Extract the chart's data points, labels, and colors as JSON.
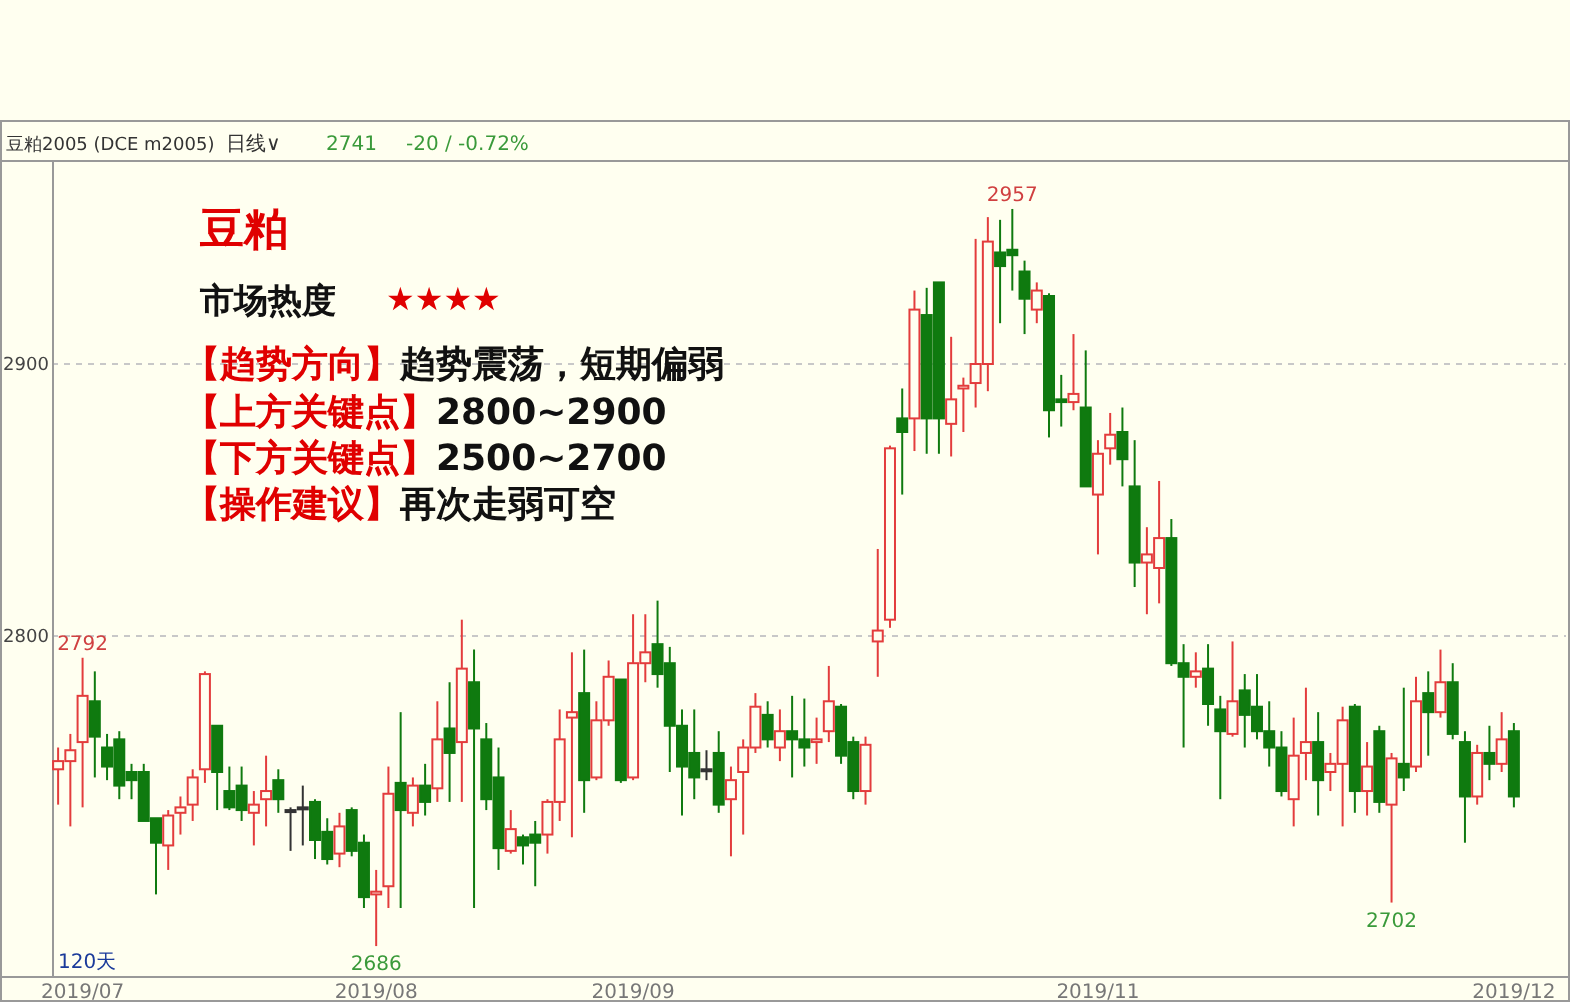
{
  "chart_data": {
    "type": "candlestick",
    "title": "豆粕",
    "subtitle": "市场热度",
    "categories": [
      null,
      null,
      "2019/07",
      null,
      null,
      null,
      null,
      null,
      null,
      null,
      null,
      null,
      null,
      null,
      null,
      null,
      null,
      null,
      null,
      null,
      null,
      null,
      null,
      null,
      null,
      null,
      "2019/08",
      null,
      null,
      null,
      null,
      null,
      null,
      null,
      null,
      null,
      null,
      null,
      null,
      null,
      null,
      null,
      null,
      null,
      null,
      null,
      null,
      "2019/09",
      null,
      null,
      null,
      null,
      null,
      null,
      null,
      null,
      null,
      null,
      null,
      null,
      null,
      null,
      null,
      null,
      null,
      null,
      null,
      null,
      null,
      null,
      null,
      null,
      null,
      null,
      null,
      null,
      null,
      null,
      null,
      null,
      null,
      null,
      null,
      null,
      null,
      "2019/11",
      null,
      null,
      null,
      null,
      null,
      null,
      null,
      null,
      null,
      null,
      null,
      null,
      null,
      null,
      null,
      null,
      null,
      null,
      null,
      null,
      null,
      null,
      null,
      null,
      null,
      null,
      null,
      null,
      null,
      null,
      null,
      null,
      null,
      "2019/12"
    ],
    "ohlc": [
      [
        2751,
        2759,
        2738,
        2754
      ],
      [
        2754,
        2764,
        2730,
        2758
      ],
      [
        2761,
        2792,
        2737,
        2778
      ],
      [
        2776,
        2787,
        2748,
        2763
      ],
      [
        2759,
        2764,
        2747,
        2752
      ],
      [
        2762,
        2765,
        2740,
        2745
      ],
      [
        2750,
        2753,
        2740,
        2747
      ],
      [
        2750,
        2753,
        2732,
        2732
      ],
      [
        2733,
        2733,
        2705,
        2724
      ],
      [
        2723,
        2736,
        2714,
        2734
      ],
      [
        2735,
        2741,
        2727,
        2737
      ],
      [
        2738,
        2751,
        2732,
        2748
      ],
      [
        2751,
        2787,
        2746,
        2786
      ],
      [
        2767,
        2767,
        2736,
        2750
      ],
      [
        2743,
        2752,
        2736,
        2737
      ],
      [
        2745,
        2752,
        2732,
        2736
      ],
      [
        2735,
        2743,
        2723,
        2738
      ],
      [
        2740,
        2756,
        2730,
        2743
      ],
      [
        2747,
        2751,
        2735,
        2740
      ],
      [
        2736,
        2737,
        2721,
        2736
      ],
      [
        2737,
        2745,
        2723,
        2737
      ],
      [
        2739,
        2740,
        2718,
        2725
      ],
      [
        2728,
        2733,
        2716,
        2718
      ],
      [
        2720,
        2735,
        2715,
        2730
      ],
      [
        2736,
        2737,
        2719,
        2721
      ],
      [
        2724,
        2727,
        2700,
        2704
      ],
      [
        2705,
        2714,
        2686,
        2706
      ],
      [
        2708,
        2752,
        2700,
        2742
      ],
      [
        2746,
        2772,
        2700,
        2736
      ],
      [
        2735,
        2748,
        2730,
        2745
      ],
      [
        2745,
        2753,
        2734,
        2739
      ],
      [
        2744,
        2776,
        2739,
        2762
      ],
      [
        2766,
        2783,
        2739,
        2757
      ],
      [
        2761,
        2806,
        2739,
        2788
      ],
      [
        2783,
        2795,
        2700,
        2766
      ],
      [
        2762,
        2768,
        2736,
        2740
      ],
      [
        2748,
        2759,
        2714,
        2722
      ],
      [
        2721,
        2736,
        2720,
        2729
      ],
      [
        2726,
        2727,
        2716,
        2723
      ],
      [
        2727,
        2732,
        2708,
        2724
      ],
      [
        2727,
        2740,
        2720,
        2739
      ],
      [
        2739,
        2773,
        2732,
        2762
      ],
      [
        2770,
        2794,
        2726,
        2772
      ],
      [
        2779,
        2795,
        2735,
        2747
      ],
      [
        2748,
        2776,
        2747,
        2769
      ],
      [
        2769,
        2791,
        2767,
        2785
      ],
      [
        2784,
        2784,
        2746,
        2747
      ],
      [
        2748,
        2808,
        2747,
        2790
      ],
      [
        2790,
        2808,
        2783,
        2794
      ],
      [
        2797,
        2813,
        2781,
        2786
      ],
      [
        2790,
        2796,
        2750,
        2767
      ],
      [
        2767,
        2773,
        2734,
        2752
      ],
      [
        2757,
        2773,
        2740,
        2748
      ],
      [
        2751,
        2758,
        2747,
        2751
      ],
      [
        2757,
        2765,
        2735,
        2738
      ],
      [
        2740,
        2752,
        2719,
        2747
      ],
      [
        2750,
        2762,
        2727,
        2759
      ],
      [
        2759,
        2779,
        2757,
        2774
      ],
      [
        2771,
        2776,
        2759,
        2762
      ],
      [
        2759,
        2773,
        2754,
        2765
      ],
      [
        2765,
        2778,
        2748,
        2762
      ],
      [
        2762,
        2777,
        2752,
        2759
      ],
      [
        2761,
        2770,
        2753,
        2762
      ],
      [
        2765,
        2789,
        2761,
        2776
      ],
      [
        2774,
        2775,
        2753,
        2756
      ],
      [
        2761,
        2763,
        2740,
        2743
      ],
      [
        2743,
        2763,
        2738,
        2760
      ],
      [
        2798,
        2832,
        2785,
        2802
      ],
      [
        2806,
        2870,
        2803,
        2869
      ],
      [
        2880,
        2891,
        2852,
        2875
      ],
      [
        2880,
        2927,
        2868,
        2920
      ],
      [
        2918,
        2928,
        2867,
        2880
      ],
      [
        2930,
        2930,
        2867,
        2880
      ],
      [
        2878,
        2910,
        2866,
        2887
      ],
      [
        2891,
        2895,
        2875,
        2892
      ],
      [
        2893,
        2946,
        2884,
        2900
      ],
      [
        2900,
        2954,
        2890,
        2945
      ],
      [
        2941,
        2953,
        2915,
        2936
      ],
      [
        2942,
        2957,
        2927,
        2940
      ],
      [
        2934,
        2938,
        2911,
        2924
      ],
      [
        2920,
        2930,
        2915,
        2927
      ],
      [
        2925,
        2926,
        2873,
        2883
      ],
      [
        2887,
        2896,
        2877,
        2886
      ],
      [
        2886,
        2911,
        2883,
        2889
      ],
      [
        2884,
        2905,
        2855,
        2855
      ],
      [
        2852,
        2872,
        2830,
        2867
      ],
      [
        2869,
        2882,
        2863,
        2874
      ],
      [
        2875,
        2884,
        2855,
        2865
      ],
      [
        2855,
        2872,
        2818,
        2827
      ],
      [
        2827,
        2840,
        2808,
        2830
      ],
      [
        2825,
        2857,
        2812,
        2836
      ],
      [
        2836,
        2843,
        2789,
        2790
      ],
      [
        2790,
        2797,
        2759,
        2785
      ],
      [
        2785,
        2794,
        2781,
        2787
      ],
      [
        2788,
        2797,
        2767,
        2775
      ],
      [
        2773,
        2778,
        2740,
        2765
      ],
      [
        2764,
        2798,
        2763,
        2776
      ],
      [
        2780,
        2786,
        2759,
        2771
      ],
      [
        2774,
        2786,
        2762,
        2765
      ],
      [
        2765,
        2776,
        2752,
        2759
      ],
      [
        2759,
        2765,
        2741,
        2743
      ],
      [
        2740,
        2770,
        2730,
        2756
      ],
      [
        2757,
        2781,
        2747,
        2761
      ],
      [
        2761,
        2772,
        2734,
        2747
      ],
      [
        2750,
        2757,
        2743,
        2753
      ],
      [
        2753,
        2774,
        2730,
        2769
      ],
      [
        2774,
        2775,
        2735,
        2743
      ],
      [
        2743,
        2761,
        2734,
        2752
      ],
      [
        2765,
        2767,
        2735,
        2739
      ],
      [
        2738,
        2757,
        2702,
        2755
      ],
      [
        2753,
        2781,
        2743,
        2748
      ],
      [
        2752,
        2785,
        2750,
        2776
      ],
      [
        2779,
        2787,
        2756,
        2772
      ],
      [
        2772,
        2795,
        2770,
        2783
      ],
      [
        2783,
        2790,
        2762,
        2764
      ],
      [
        2761,
        2765,
        2724,
        2741
      ],
      [
        2741,
        2760,
        2738,
        2757
      ],
      [
        2757,
        2767,
        2747,
        2753
      ],
      [
        2753,
        2772,
        2750,
        2762
      ],
      [
        2765,
        2768,
        2737,
        2741
      ]
    ],
    "colors": [
      "#e33c3c",
      "#e33c3c",
      "#e33c3c",
      "#0f7a0f",
      "#0f7a0f",
      "#0f7a0f",
      "#0f7a0f",
      "#0f7a0f",
      "#0f7a0f",
      "#e33c3c",
      "#e33c3c",
      "#e33c3c",
      "#e33c3c",
      "#0f7a0f",
      "#0f7a0f",
      "#0f7a0f",
      "#e33c3c",
      "#e33c3c",
      "#0f7a0f",
      "#333333",
      "#333333",
      "#0f7a0f",
      "#0f7a0f",
      "#e33c3c",
      "#0f7a0f",
      "#0f7a0f",
      "#e33c3c",
      "#e33c3c",
      "#0f7a0f",
      "#e33c3c",
      "#0f7a0f",
      "#e33c3c",
      "#0f7a0f",
      "#e33c3c",
      "#0f7a0f",
      "#0f7a0f",
      "#0f7a0f",
      "#e33c3c",
      "#0f7a0f",
      "#0f7a0f",
      "#e33c3c",
      "#e33c3c",
      "#e33c3c",
      "#0f7a0f",
      "#e33c3c",
      "#e33c3c",
      "#0f7a0f",
      "#e33c3c",
      "#e33c3c",
      "#0f7a0f",
      "#0f7a0f",
      "#0f7a0f",
      "#0f7a0f",
      "#333333",
      "#0f7a0f",
      "#e33c3c",
      "#e33c3c",
      "#e33c3c",
      "#0f7a0f",
      "#e33c3c",
      "#0f7a0f",
      "#0f7a0f",
      "#e33c3c",
      "#e33c3c",
      "#0f7a0f",
      "#0f7a0f",
      "#e33c3c",
      "#e33c3c",
      "#e33c3c",
      "#0f7a0f",
      "#e33c3c",
      "#0f7a0f",
      "#0f7a0f",
      "#e33c3c",
      "#e33c3c",
      "#e33c3c",
      "#e33c3c",
      "#0f7a0f",
      "#0f7a0f",
      "#0f7a0f",
      "#e33c3c",
      "#0f7a0f",
      "#0f7a0f",
      "#e33c3c",
      "#0f7a0f",
      "#e33c3c",
      "#e33c3c",
      "#0f7a0f",
      "#0f7a0f",
      "#e33c3c",
      "#e33c3c",
      "#0f7a0f",
      "#0f7a0f",
      "#e33c3c",
      "#0f7a0f",
      "#0f7a0f",
      "#e33c3c",
      "#0f7a0f",
      "#0f7a0f",
      "#0f7a0f",
      "#0f7a0f",
      "#e33c3c",
      "#e33c3c",
      "#0f7a0f",
      "#e33c3c",
      "#e33c3c",
      "#0f7a0f",
      "#e33c3c",
      "#0f7a0f",
      "#e33c3c",
      "#0f7a0f",
      "#e33c3c",
      "#0f7a0f",
      "#e33c3c",
      "#0f7a0f",
      "#0f7a0f",
      "#e33c3c",
      "#0f7a0f",
      "#e33c3c",
      "#0f7a0f"
    ],
    "ylim": [
      2675,
      2975
    ],
    "yticks": [
      2800,
      2900
    ],
    "grid": "y",
    "annotations": [
      "豆粕2005 (DCE m2005)",
      "日线∨",
      "2741",
      "-20 / -0.72%",
      "★★★★",
      "【趋势方向】",
      "趋势震荡，短期偏弱",
      "【上方关键点】",
      "2800~2900",
      "【下方关键点】",
      "2500~2700",
      "【操作建议】",
      "再次走弱可空",
      "120天",
      {
        "text": "2792",
        "y": 2792
      },
      {
        "text": "2957",
        "y": 2957
      },
      {
        "text": "2686",
        "y": 2686
      },
      {
        "text": "2702",
        "y": 2702
      }
    ]
  }
}
